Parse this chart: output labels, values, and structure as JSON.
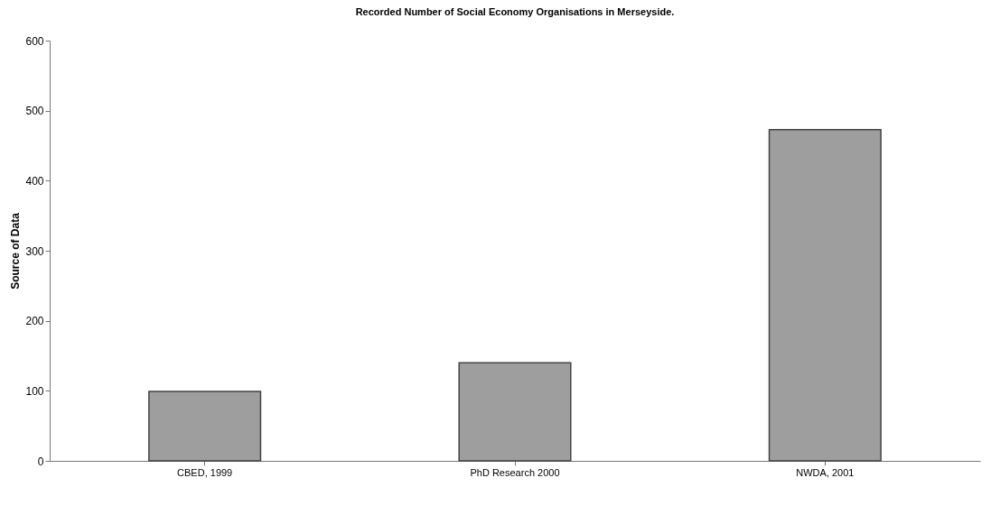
{
  "chart_data": {
    "type": "bar",
    "title": "Recorded Number of Social Economy Organisations in Merseyside.",
    "ylabel": "Source of Data",
    "categories": [
      "CBED,  1999",
      "PhD Research 2000",
      "NWDA, 2001"
    ],
    "values": [
      99,
      140,
      473
    ],
    "color": "#9e9e9e",
    "ylim": [
      0,
      600
    ],
    "yticks": [
      0,
      100,
      200,
      300,
      400,
      500,
      600
    ],
    "grid": false
  }
}
